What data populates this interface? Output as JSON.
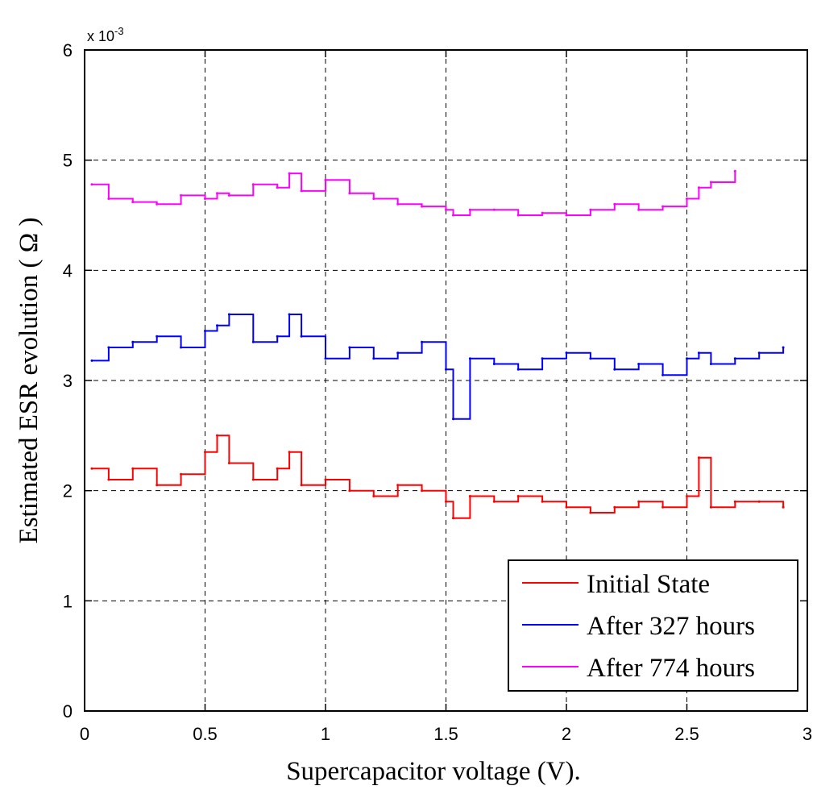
{
  "chart_data": {
    "type": "line",
    "xlabel": "Supercapacitor voltage (V).",
    "ylabel": "Estimated ESR evolution ( Ω )",
    "xlim": [
      0,
      3
    ],
    "ylim": [
      0,
      0.006
    ],
    "y_multiplier": {
      "base": "x 10",
      "exponent": "-3"
    },
    "x_ticks": [
      0,
      0.5,
      1,
      1.5,
      2,
      2.5,
      3
    ],
    "x_tick_labels": [
      "0",
      "0.5",
      "1",
      "1.5",
      "2",
      "2.5",
      "3"
    ],
    "y_ticks": [
      0,
      0.001,
      0.002,
      0.003,
      0.004,
      0.005,
      0.006
    ],
    "y_tick_labels": [
      "0",
      "1",
      "2",
      "3",
      "4",
      "5",
      "6"
    ],
    "grid": true,
    "legend_position": "bottom-right",
    "x": [
      0.03,
      0.1,
      0.2,
      0.3,
      0.4,
      0.5,
      0.55,
      0.6,
      0.7,
      0.8,
      0.85,
      0.9,
      1.0,
      1.1,
      1.2,
      1.3,
      1.4,
      1.5,
      1.53,
      1.6,
      1.7,
      1.8,
      1.9,
      2.0,
      2.1,
      2.2,
      2.3,
      2.4,
      2.5,
      2.55,
      2.6,
      2.7,
      2.8,
      2.9
    ],
    "series": [
      {
        "name": "Initial State",
        "color": "#ff0000",
        "values": [
          0.0022,
          0.0021,
          0.0022,
          0.00205,
          0.00215,
          0.00235,
          0.0025,
          0.00225,
          0.0021,
          0.0022,
          0.00235,
          0.00205,
          0.0021,
          0.002,
          0.00195,
          0.00205,
          0.002,
          0.0019,
          0.00175,
          0.00195,
          0.0019,
          0.00195,
          0.0019,
          0.00185,
          0.0018,
          0.00185,
          0.0019,
          0.00185,
          0.00195,
          0.0023,
          0.00185,
          0.0019,
          0.0019,
          0.00185
        ]
      },
      {
        "name": "After 327 hours",
        "color": "#0000ff",
        "values": [
          0.00318,
          0.0033,
          0.00335,
          0.0034,
          0.0033,
          0.00345,
          0.0035,
          0.0036,
          0.00335,
          0.0034,
          0.0036,
          0.0034,
          0.0032,
          0.0033,
          0.0032,
          0.00325,
          0.00335,
          0.0031,
          0.00265,
          0.0032,
          0.00315,
          0.0031,
          0.0032,
          0.00325,
          0.0032,
          0.0031,
          0.00315,
          0.00305,
          0.0032,
          0.00325,
          0.00315,
          0.0032,
          0.00325,
          0.0033
        ]
      },
      {
        "name": "After 774 hours",
        "color": "#ff00ff",
        "values": [
          0.00478,
          0.00465,
          0.00462,
          0.0046,
          0.00468,
          0.00465,
          0.0047,
          0.00468,
          0.00478,
          0.00475,
          0.00488,
          0.00472,
          0.00482,
          0.0047,
          0.00465,
          0.0046,
          0.00458,
          0.00455,
          0.0045,
          0.00455,
          0.00455,
          0.0045,
          0.00452,
          0.0045,
          0.00455,
          0.0046,
          0.00455,
          0.00458,
          0.00465,
          0.00475,
          0.0048,
          0.0049,
          null,
          null
        ]
      }
    ]
  }
}
